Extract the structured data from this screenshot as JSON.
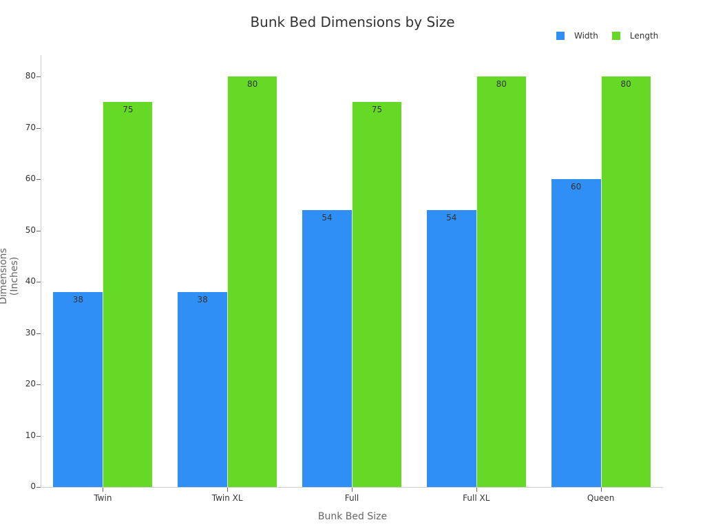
{
  "chart_data": {
    "type": "bar",
    "title": "Bunk Bed Dimensions by Size",
    "xlabel": "Bunk Bed Size",
    "ylabel": "Dimensions (Inches)",
    "categories": [
      "Twin",
      "Twin XL",
      "Full",
      "Full XL",
      "Queen"
    ],
    "series": [
      {
        "name": "Width",
        "color": "#2f8ff5",
        "values": [
          38,
          38,
          54,
          54,
          60
        ]
      },
      {
        "name": "Length",
        "color": "#66d926",
        "values": [
          75,
          80,
          75,
          80,
          80
        ]
      }
    ],
    "ylim": [
      0,
      80
    ],
    "yticks": [
      0,
      10,
      20,
      30,
      40,
      50,
      60,
      70,
      80
    ],
    "legend_position": "top-right",
    "grid": false
  }
}
